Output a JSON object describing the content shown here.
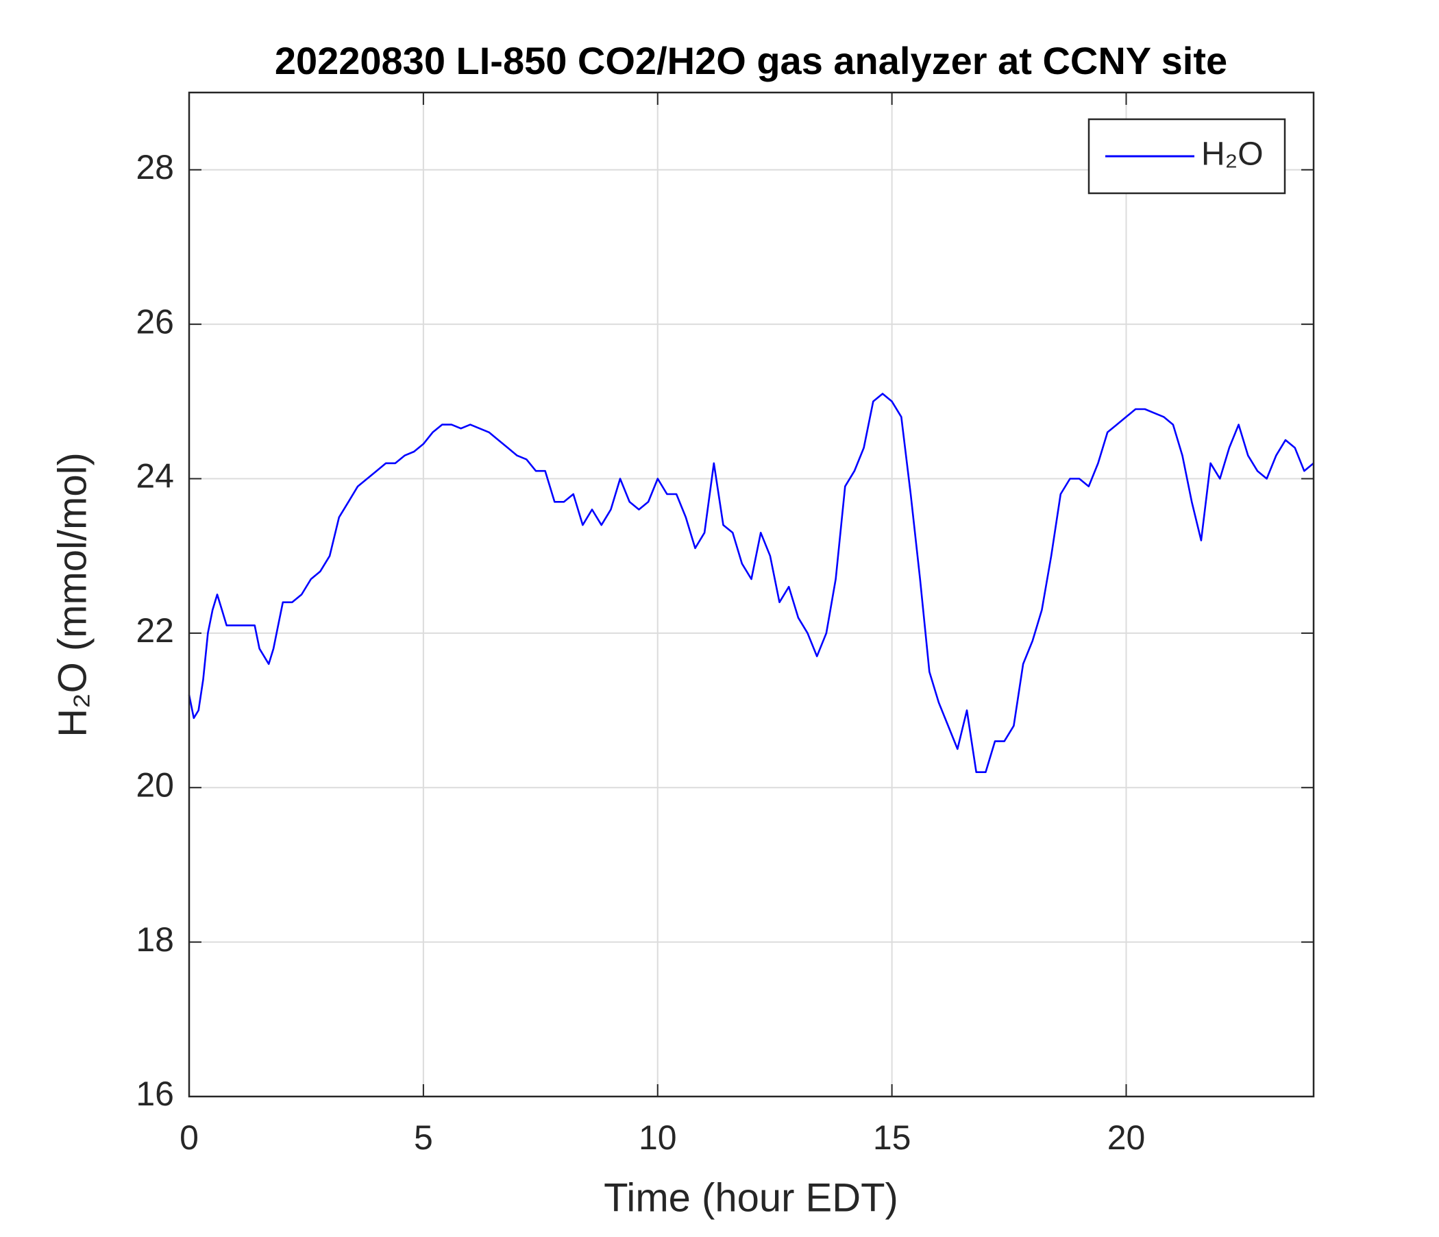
{
  "chart_data": {
    "type": "line",
    "title": "20220830 LI-850 CO2/H2O gas analyzer at CCNY site",
    "xlabel": "Time (hour EDT)",
    "ylabel": "H₂O (mmol/mol)",
    "xlim": [
      0,
      24
    ],
    "ylim": [
      16,
      29
    ],
    "xticks": [
      0,
      5,
      10,
      15,
      20
    ],
    "yticks": [
      16,
      18,
      20,
      22,
      24,
      26,
      28
    ],
    "grid": true,
    "legend": "upper right",
    "x": [
      0,
      0.1,
      0.2,
      0.3,
      0.4,
      0.5,
      0.6,
      0.7,
      0.8,
      1.0,
      1.2,
      1.4,
      1.5,
      1.6,
      1.7,
      1.8,
      1.9,
      2.0,
      2.2,
      2.4,
      2.6,
      2.8,
      3.0,
      3.2,
      3.4,
      3.6,
      3.8,
      4.0,
      4.2,
      4.4,
      4.6,
      4.8,
      5.0,
      5.2,
      5.4,
      5.6,
      5.8,
      6.0,
      6.2,
      6.4,
      6.6,
      6.8,
      7.0,
      7.2,
      7.4,
      7.6,
      7.8,
      8.0,
      8.2,
      8.4,
      8.6,
      8.8,
      9.0,
      9.2,
      9.4,
      9.6,
      9.8,
      10.0,
      10.2,
      10.4,
      10.6,
      10.8,
      11.0,
      11.2,
      11.4,
      11.6,
      11.8,
      12.0,
      12.2,
      12.4,
      12.6,
      12.8,
      13.0,
      13.2,
      13.4,
      13.6,
      13.8,
      14.0,
      14.2,
      14.4,
      14.6,
      14.8,
      15.0,
      15.2,
      15.4,
      15.6,
      15.8,
      16.0,
      16.2,
      16.4,
      16.6,
      16.8,
      17.0,
      17.2,
      17.4,
      17.6,
      17.8,
      18.0,
      18.2,
      18.4,
      18.6,
      18.8,
      19.0,
      19.2,
      19.4,
      19.6,
      19.8,
      20.0,
      20.2,
      20.4,
      20.6,
      20.8,
      21.0,
      21.2,
      21.4,
      21.6,
      21.8,
      22.0,
      22.2,
      22.4,
      22.6,
      22.8,
      23.0,
      23.2,
      23.4,
      23.6,
      23.8,
      24.0
    ],
    "series": [
      {
        "name": "H₂O",
        "color": "#0000ff",
        "values": [
          21.2,
          20.9,
          21.0,
          21.4,
          22.0,
          22.3,
          22.5,
          22.3,
          22.1,
          22.1,
          22.1,
          22.1,
          21.8,
          21.7,
          21.6,
          21.8,
          22.1,
          22.4,
          22.4,
          22.5,
          22.7,
          22.8,
          23.0,
          23.5,
          23.7,
          23.9,
          24.0,
          24.1,
          24.2,
          24.2,
          24.3,
          24.35,
          24.45,
          24.6,
          24.7,
          24.7,
          24.65,
          24.7,
          24.65,
          24.6,
          24.5,
          24.4,
          24.3,
          24.25,
          24.1,
          24.1,
          23.7,
          23.7,
          23.8,
          23.4,
          23.6,
          23.4,
          23.6,
          24.0,
          23.7,
          23.6,
          23.7,
          24.0,
          23.8,
          23.8,
          23.5,
          23.1,
          23.3,
          24.2,
          23.4,
          23.3,
          22.9,
          22.7,
          23.3,
          23.0,
          22.4,
          22.6,
          22.2,
          22.0,
          21.7,
          22.0,
          22.7,
          23.9,
          24.1,
          24.4,
          25.0,
          25.1,
          25.0,
          24.8,
          23.8,
          22.7,
          21.5,
          21.1,
          20.8,
          20.5,
          21.0,
          20.2,
          20.2,
          20.6,
          20.6,
          20.8,
          21.6,
          21.9,
          22.3,
          23.0,
          23.8,
          24.0,
          24.0,
          23.9,
          24.2,
          24.6,
          24.7,
          24.8,
          24.9,
          24.9,
          24.85,
          24.8,
          24.7,
          24.3,
          23.7,
          23.2,
          24.2,
          24.0,
          24.4,
          24.7,
          24.3,
          24.1,
          24.0,
          24.3,
          24.5,
          24.4,
          24.1,
          24.2
        ]
      }
    ]
  }
}
